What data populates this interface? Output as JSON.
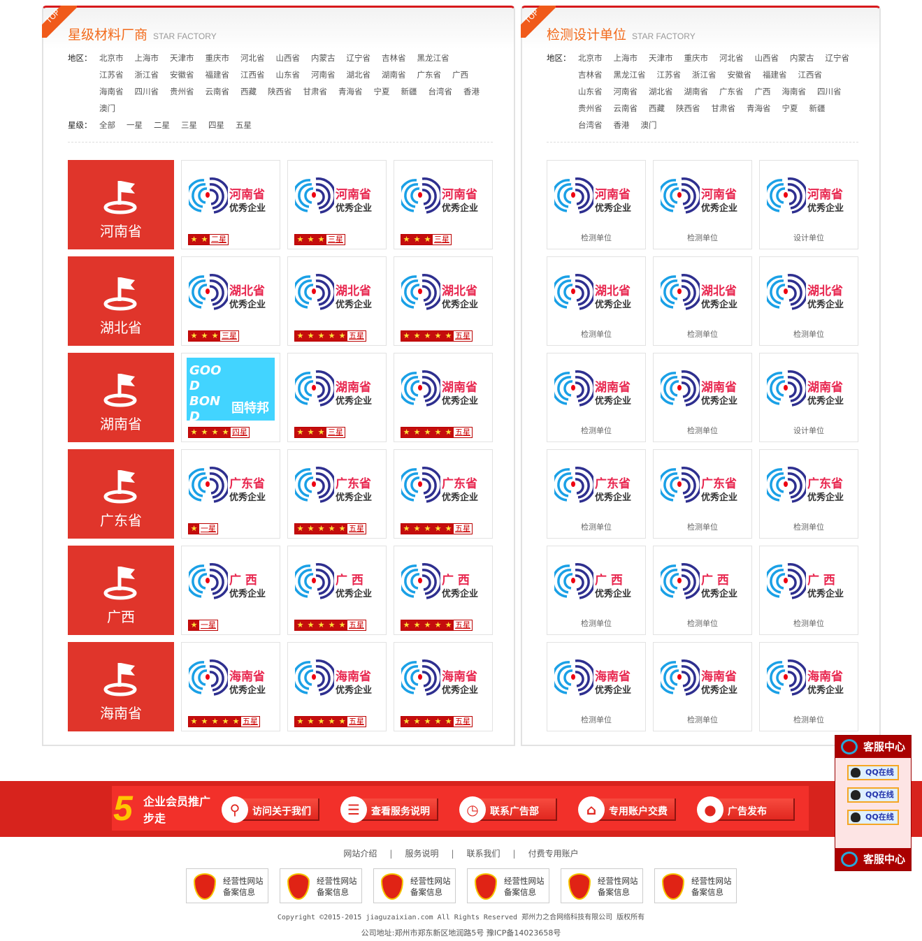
{
  "left_panel": {
    "badge": "TOP",
    "title": "星级材料厂商",
    "subtitle": "STAR FACTORY",
    "region_label": "地区：",
    "regions": [
      "北京市",
      "上海市",
      "天津市",
      "重庆市",
      "河北省",
      "山西省",
      "内蒙古",
      "辽宁省",
      "吉林省",
      "黑龙江省",
      "江苏省",
      "浙江省",
      "安徽省",
      "福建省",
      "江西省",
      "山东省",
      "河南省",
      "湖北省",
      "湖南省",
      "广东省",
      "广西",
      "海南省",
      "四川省",
      "贵州省",
      "云南省",
      "西藏",
      "陕西省",
      "甘肃省",
      "青海省",
      "宁夏",
      "新疆",
      "台湾省",
      "香港",
      "澳门"
    ],
    "star_label": "星级：",
    "star_filters": [
      "全部",
      "一星",
      "二星",
      "三星",
      "四星",
      "五星"
    ],
    "rows": [
      {
        "province": "河南省",
        "logo_name": "河南省",
        "cards": [
          {
            "stars": 2,
            "star_text": "二星"
          },
          {
            "stars": 3,
            "star_text": "三星"
          },
          {
            "stars": 3,
            "star_text": "三星"
          }
        ]
      },
      {
        "province": "湖北省",
        "logo_name": "湖北省",
        "cards": [
          {
            "stars": 3,
            "star_text": "三星"
          },
          {
            "stars": 5,
            "star_text": "五星"
          },
          {
            "stars": 5,
            "star_text": "五星"
          }
        ]
      },
      {
        "province": "湖南省",
        "logo_name": "湖南省",
        "cards": [
          {
            "stars": 4,
            "star_text": "四星",
            "brand": "固特邦",
            "brand_logo": "GOOD BOND"
          },
          {
            "stars": 3,
            "star_text": "三星"
          },
          {
            "stars": 5,
            "star_text": "五星"
          }
        ]
      },
      {
        "province": "广东省",
        "logo_name": "广东省",
        "cards": [
          {
            "stars": 1,
            "star_text": "一星"
          },
          {
            "stars": 5,
            "star_text": "五星"
          },
          {
            "stars": 5,
            "star_text": "五星"
          }
        ]
      },
      {
        "province": "广西",
        "logo_name": "广 西",
        "cards": [
          {
            "stars": 1,
            "star_text": "一星"
          },
          {
            "stars": 5,
            "star_text": "五星"
          },
          {
            "stars": 5,
            "star_text": "五星"
          }
        ]
      },
      {
        "province": "海南省",
        "logo_name": "海南省",
        "cards": [
          {
            "stars": 5,
            "star_text": "五星"
          },
          {
            "stars": 5,
            "star_text": "五星"
          },
          {
            "stars": 5,
            "star_text": "五星"
          }
        ]
      }
    ]
  },
  "logo_subtitle": "优秀企业",
  "right_panel": {
    "badge": "TOP",
    "title": "检测设计单位",
    "subtitle": "STAR FACTORY",
    "region_label": "地区：",
    "regions": [
      "北京市",
      "上海市",
      "天津市",
      "重庆市",
      "河北省",
      "山西省",
      "内蒙古",
      "辽宁省",
      "吉林省",
      "黑龙江省",
      "江苏省",
      "浙江省",
      "安徽省",
      "福建省",
      "江西省",
      "山东省",
      "河南省",
      "湖北省",
      "湖南省",
      "广东省",
      "广西",
      "海南省",
      "四川省",
      "贵州省",
      "云南省",
      "西藏",
      "陕西省",
      "甘肃省",
      "青海省",
      "宁夏",
      "新疆",
      "台湾省",
      "香港",
      "澳门"
    ],
    "rows": [
      {
        "logo_name": "河南省",
        "units": [
          "检测单位",
          "检测单位",
          "设计单位"
        ]
      },
      {
        "logo_name": "湖北省",
        "units": [
          "检测单位",
          "检测单位",
          "检测单位"
        ]
      },
      {
        "logo_name": "湖南省",
        "units": [
          "检测单位",
          "检测单位",
          "设计单位"
        ]
      },
      {
        "logo_name": "广东省",
        "units": [
          "检测单位",
          "检测单位",
          "检测单位"
        ]
      },
      {
        "logo_name": "广 西",
        "units": [
          "检测单位",
          "检测单位",
          "检测单位"
        ]
      },
      {
        "logo_name": "海南省",
        "units": [
          "检测单位",
          "检测单位",
          "检测单位"
        ]
      }
    ]
  },
  "banner": {
    "number": "5",
    "title_line1": "企业会员推广",
    "title_line2": "步走",
    "buttons": [
      {
        "label": "访问关于我们",
        "icon": "search-icon",
        "glyph": "⚲"
      },
      {
        "label": "查看服务说明",
        "icon": "message-icon",
        "glyph": "☰"
      },
      {
        "label": "联系广告部",
        "icon": "clock-icon",
        "glyph": "◷"
      },
      {
        "label": "专用账户交费",
        "icon": "home-icon",
        "glyph": "⌂"
      },
      {
        "label": "广告发布",
        "icon": "user-icon",
        "glyph": "●"
      }
    ]
  },
  "footer": {
    "links": [
      "网站介绍",
      "服务说明",
      "联系我们",
      "付费专用账户"
    ],
    "badge_line1": "经营性网站",
    "badge_line2": "备案信息",
    "badge_count": 6,
    "copyright": "Copyright ©2015-2015 jiaguzaixian.com All Rights Reserved 郑州力之合网络科技有限公司 版权所有",
    "address": "公司地址:郑州市郑东新区地润路5号   豫ICP备14023658号"
  },
  "service": {
    "title": "客服中心",
    "qq_label": "QQ在线",
    "qq_count": 3
  },
  "colors": {
    "brand_red": "#e0352b",
    "title_orange": "#f26a1b",
    "banner_red": "#f2302a"
  }
}
